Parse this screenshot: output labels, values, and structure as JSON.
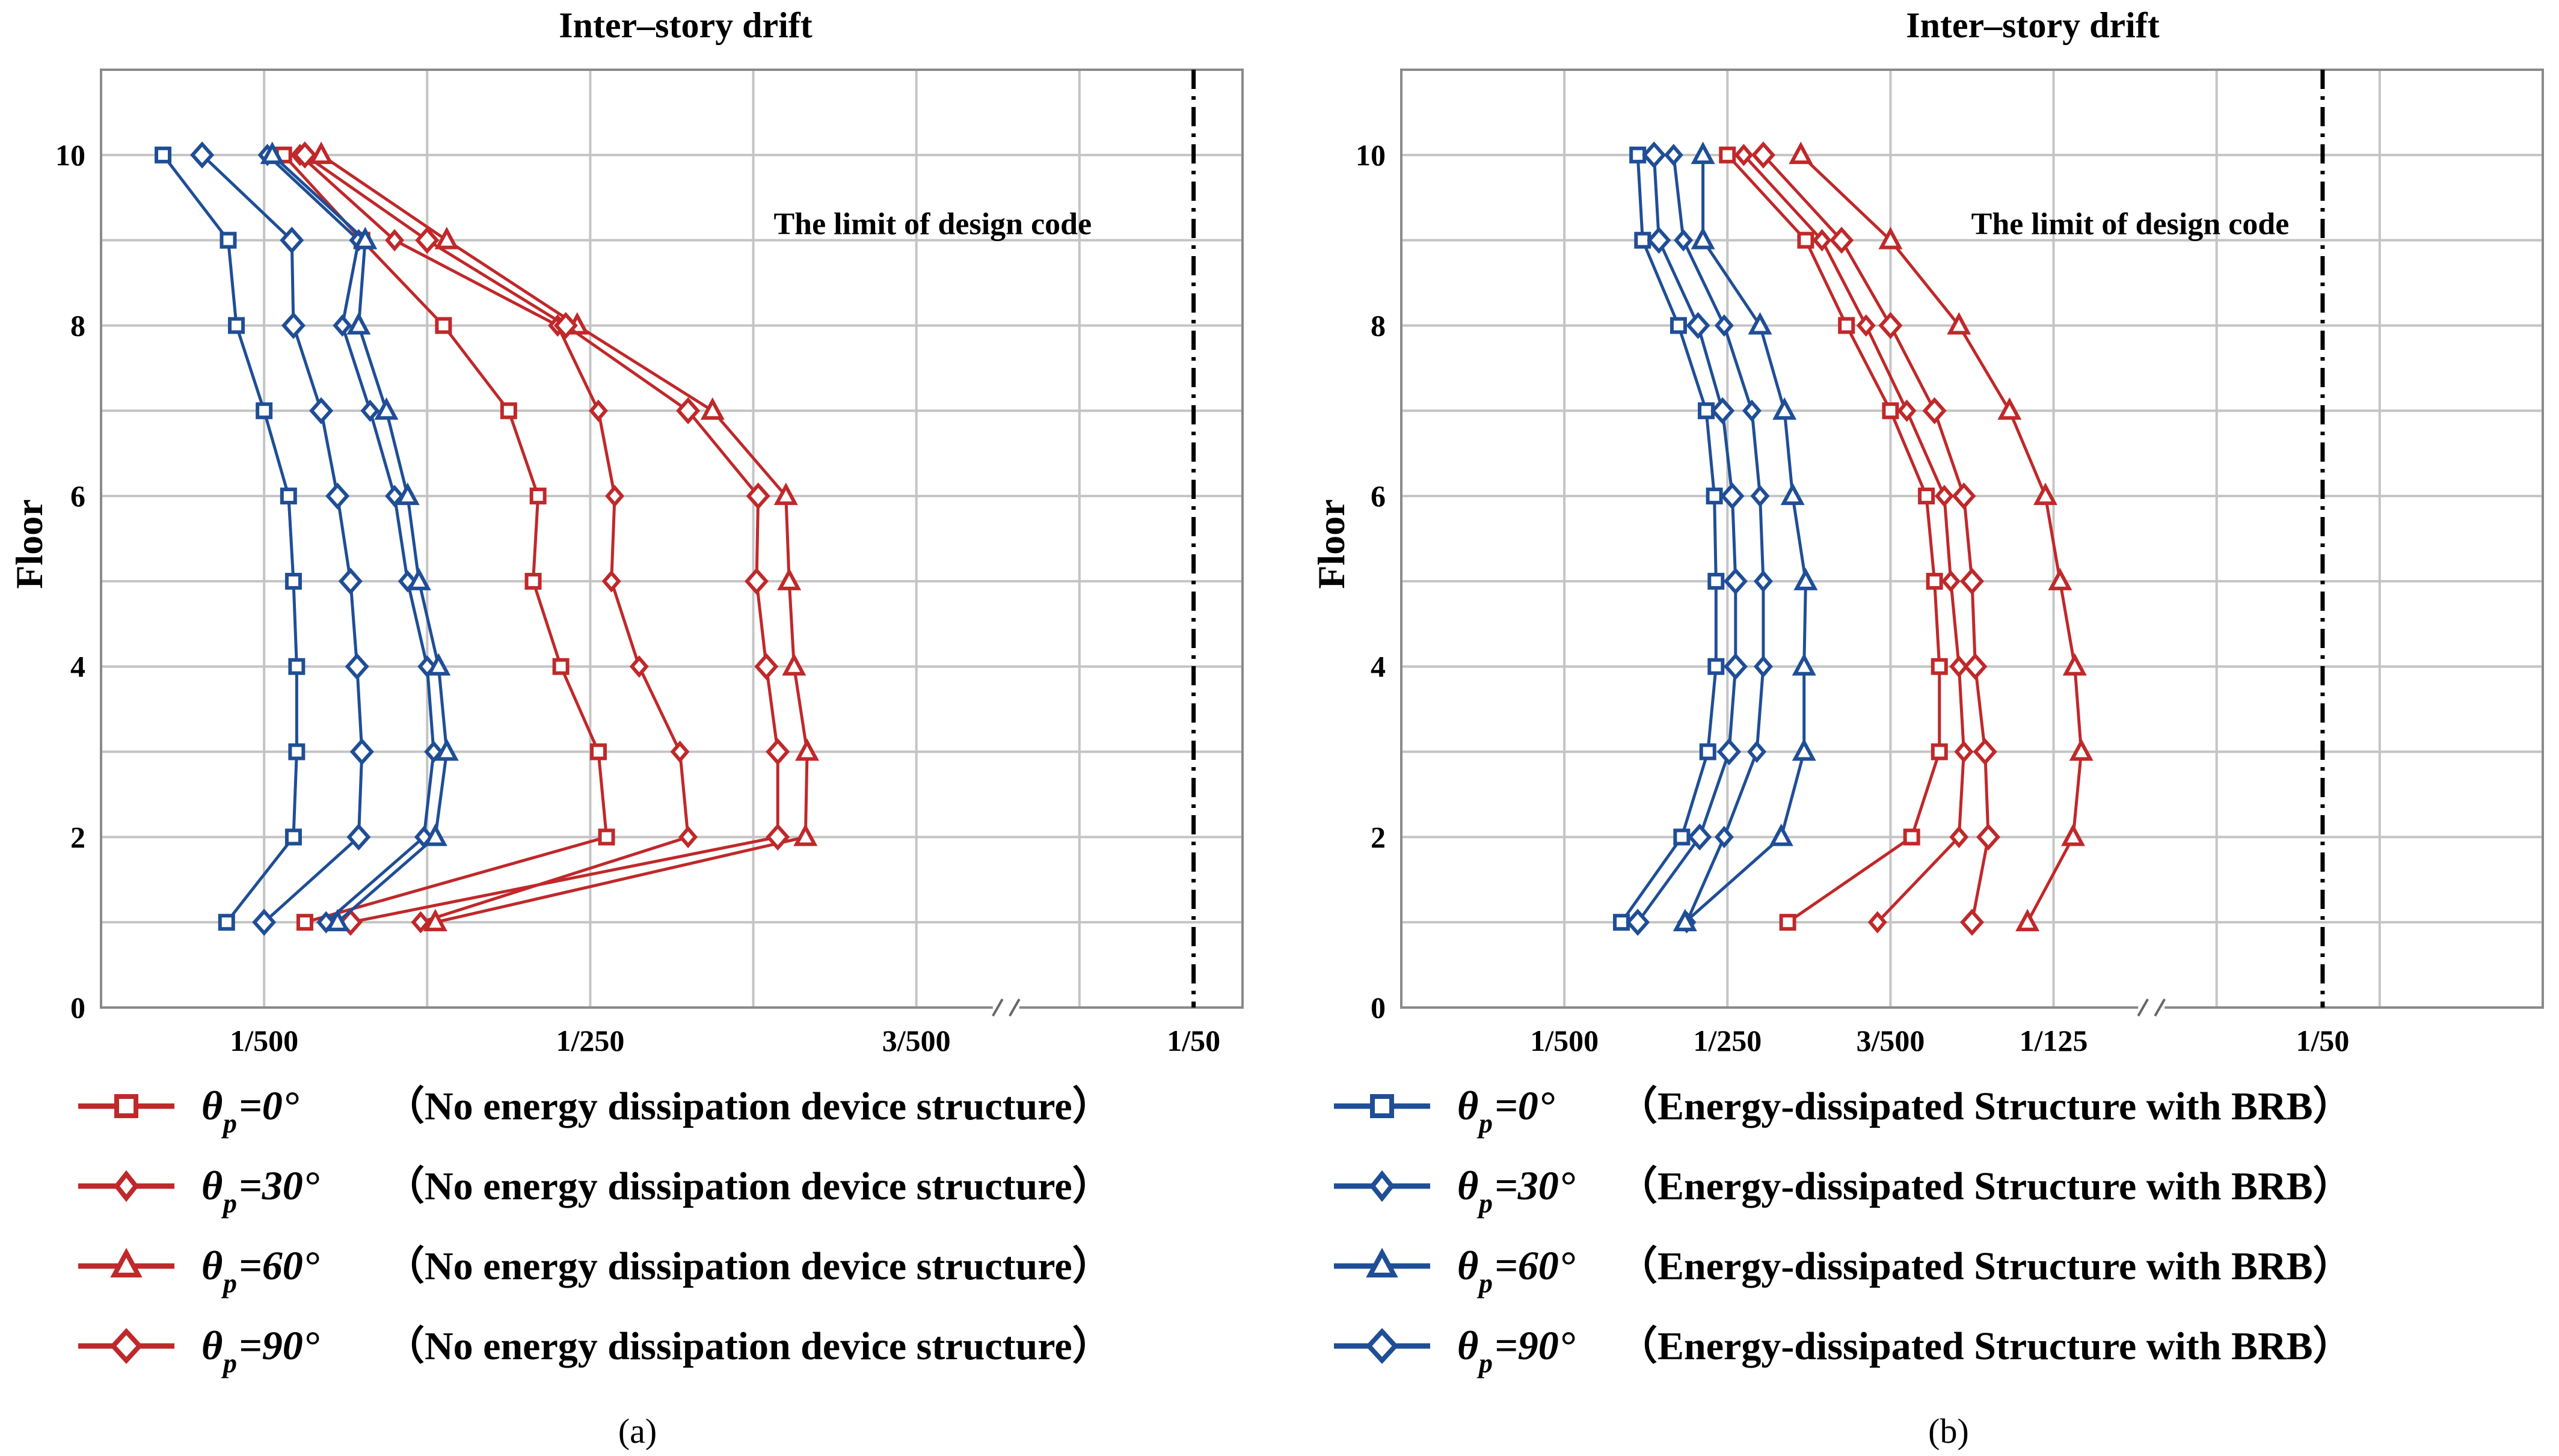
{
  "colors": {
    "red": "#c0282a",
    "blue": "#1f4e96",
    "grid": "#c4c4c4",
    "frame": "#8a8a8a"
  },
  "chart_data": [
    {
      "type": "line",
      "panel_label": "(a)",
      "title": "Inter–story drift",
      "xlabel": "",
      "ylabel": "Floor",
      "xlim": [
        0,
        7
      ],
      "ylim": [
        0,
        11
      ],
      "yticks": [
        0,
        2,
        4,
        6,
        8,
        10
      ],
      "xticks": [
        {
          "value": 1,
          "label": "1/500"
        },
        {
          "value": 3,
          "label": "1/250"
        },
        {
          "value": 5,
          "label": "3/500"
        },
        {
          "value": 6.7,
          "label": "1/50"
        }
      ],
      "axis_break_at": 5.55,
      "annotation": {
        "text": "The limit of design code",
        "x": 5.1,
        "y": 9.2
      },
      "design_limit_x": 6.7,
      "y": [
        1,
        2,
        3,
        4,
        5,
        6,
        7,
        8,
        9,
        10
      ],
      "series": [
        {
          "name": "θp=0° (No energy dissipation device structure)",
          "color": "red",
          "marker": "square",
          "values": [
            1.25,
            3.1,
            3.05,
            2.82,
            2.65,
            2.68,
            2.5,
            2.1,
            1.6,
            1.12
          ]
        },
        {
          "name": "θp=30° (No energy dissipation device structure)",
          "color": "red",
          "marker": "diamond-sm",
          "values": [
            1.96,
            3.6,
            3.55,
            3.3,
            3.13,
            3.15,
            3.05,
            2.8,
            1.8,
            1.22
          ]
        },
        {
          "name": "θp=60° (No energy dissipation device structure)",
          "color": "red",
          "marker": "triangle",
          "values": [
            2.05,
            4.32,
            4.33,
            4.25,
            4.22,
            4.2,
            3.75,
            2.92,
            2.12,
            1.35
          ]
        },
        {
          "name": "θp=90° (No energy dissipation device structure)",
          "color": "red",
          "marker": "diamond",
          "values": [
            1.53,
            4.15,
            4.15,
            4.08,
            4.02,
            4.03,
            3.6,
            2.85,
            2.0,
            1.25
          ]
        },
        {
          "name": "θp=0° (Energy-dissipated Structure with BRB)",
          "color": "blue",
          "marker": "square",
          "values": [
            0.77,
            1.18,
            1.2,
            1.2,
            1.18,
            1.15,
            1.0,
            0.83,
            0.78,
            0.38
          ]
        },
        {
          "name": "θp=30° (Energy-dissipated Structure with BRB)",
          "color": "blue",
          "marker": "diamond-sm",
          "values": [
            1.38,
            1.98,
            2.04,
            2.0,
            1.88,
            1.8,
            1.65,
            1.48,
            1.58,
            1.02
          ]
        },
        {
          "name": "θp=60° (Energy-dissipated Structure with BRB)",
          "color": "blue",
          "marker": "triangle",
          "values": [
            1.45,
            2.05,
            2.12,
            2.07,
            1.95,
            1.88,
            1.75,
            1.58,
            1.62,
            1.05
          ]
        },
        {
          "name": "θp=90° (Energy-dissipated Structure with BRB)",
          "color": "blue",
          "marker": "diamond",
          "values": [
            1.0,
            1.58,
            1.6,
            1.57,
            1.53,
            1.45,
            1.35,
            1.18,
            1.17,
            0.62
          ]
        }
      ]
    },
    {
      "type": "line",
      "panel_label": "(b)",
      "title": "Inter–story drift",
      "xlabel": "",
      "ylabel": "Floor",
      "xlim": [
        0,
        7
      ],
      "ylim": [
        0,
        11
      ],
      "yticks": [
        0,
        2,
        4,
        6,
        8,
        10
      ],
      "xticks": [
        {
          "value": 1,
          "label": "1/500"
        },
        {
          "value": 2,
          "label": "1/250"
        },
        {
          "value": 3,
          "label": "3/500"
        },
        {
          "value": 4,
          "label": "1/125"
        },
        {
          "value": 5.65,
          "label": "1/50"
        }
      ],
      "axis_break_at": 4.6,
      "annotation": {
        "text": "The limit of design code",
        "x": 4.47,
        "y": 9.2
      },
      "design_limit_x": 5.65,
      "y": [
        1,
        2,
        3,
        4,
        5,
        6,
        7,
        8,
        9,
        10
      ],
      "series": [
        {
          "name": "θp=0° (No energy dissipation device structure)",
          "color": "red",
          "marker": "square",
          "values": [
            2.37,
            3.13,
            3.3,
            3.3,
            3.27,
            3.22,
            3.0,
            2.73,
            2.48,
            2.0
          ]
        },
        {
          "name": "θp=30° (No energy dissipation device structure)",
          "color": "red",
          "marker": "diamond-sm",
          "values": [
            2.92,
            3.42,
            3.45,
            3.42,
            3.37,
            3.33,
            3.1,
            2.85,
            2.58,
            2.1
          ]
        },
        {
          "name": "θp=60° (No energy dissipation device structure)",
          "color": "red",
          "marker": "triangle",
          "values": [
            3.84,
            4.12,
            4.17,
            4.13,
            4.04,
            3.95,
            3.73,
            3.42,
            3.0,
            2.45
          ]
        },
        {
          "name": "θp=90° (No energy dissipation device structure)",
          "color": "red",
          "marker": "diamond",
          "values": [
            3.5,
            3.6,
            3.58,
            3.52,
            3.5,
            3.45,
            3.27,
            3.0,
            2.7,
            2.22
          ]
        },
        {
          "name": "θp=0° (Energy-dissipated Structure with BRB)",
          "color": "blue",
          "marker": "square",
          "values": [
            1.35,
            1.72,
            1.88,
            1.93,
            1.93,
            1.92,
            1.87,
            1.7,
            1.48,
            1.45
          ]
        },
        {
          "name": "θp=30° (Energy-dissipated Structure with BRB)",
          "color": "blue",
          "marker": "diamond-sm",
          "values": [
            1.75,
            1.98,
            2.18,
            2.22,
            2.22,
            2.2,
            2.15,
            1.98,
            1.73,
            1.67
          ]
        },
        {
          "name": "θp=60° (Energy-dissipated Structure with BRB)",
          "color": "blue",
          "marker": "triangle",
          "values": [
            1.74,
            2.33,
            2.47,
            2.47,
            2.48,
            2.4,
            2.35,
            2.2,
            1.85,
            1.85
          ]
        },
        {
          "name": "θp=90° (Energy-dissipated Structure with BRB)",
          "color": "blue",
          "marker": "diamond",
          "values": [
            1.45,
            1.83,
            2.01,
            2.05,
            2.05,
            2.03,
            1.97,
            1.82,
            1.58,
            1.55
          ]
        }
      ]
    }
  ],
  "legend": {
    "left": [
      {
        "theta": "θ",
        "sub": "p",
        "value": "=0°",
        "desc": "（No energy dissipation device structure）",
        "marker": "square"
      },
      {
        "theta": "θ",
        "sub": "p",
        "value": "=30°",
        "desc": "（No energy dissipation device structure）",
        "marker": "diamond-sm"
      },
      {
        "theta": "θ",
        "sub": "p",
        "value": "=60°",
        "desc": "（No energy dissipation device structure）",
        "marker": "triangle"
      },
      {
        "theta": "θ",
        "sub": "p",
        "value": "=90°",
        "desc": "（No energy dissipation device structure）",
        "marker": "diamond"
      }
    ],
    "right": [
      {
        "theta": "θ",
        "sub": "p",
        "value": "=0°",
        "desc": "（Energy-dissipated Structure with BRB）",
        "marker": "square"
      },
      {
        "theta": "θ",
        "sub": "p",
        "value": "=30°",
        "desc": "（Energy-dissipated Structure with BRB）",
        "marker": "diamond-sm"
      },
      {
        "theta": "θ",
        "sub": "p",
        "value": "=60°",
        "desc": "（Energy-dissipated Structure with BRB）",
        "marker": "triangle"
      },
      {
        "theta": "θ",
        "sub": "p",
        "value": "=90°",
        "desc": "（Energy-dissipated Structure with BRB）",
        "marker": "diamond"
      }
    ]
  }
}
